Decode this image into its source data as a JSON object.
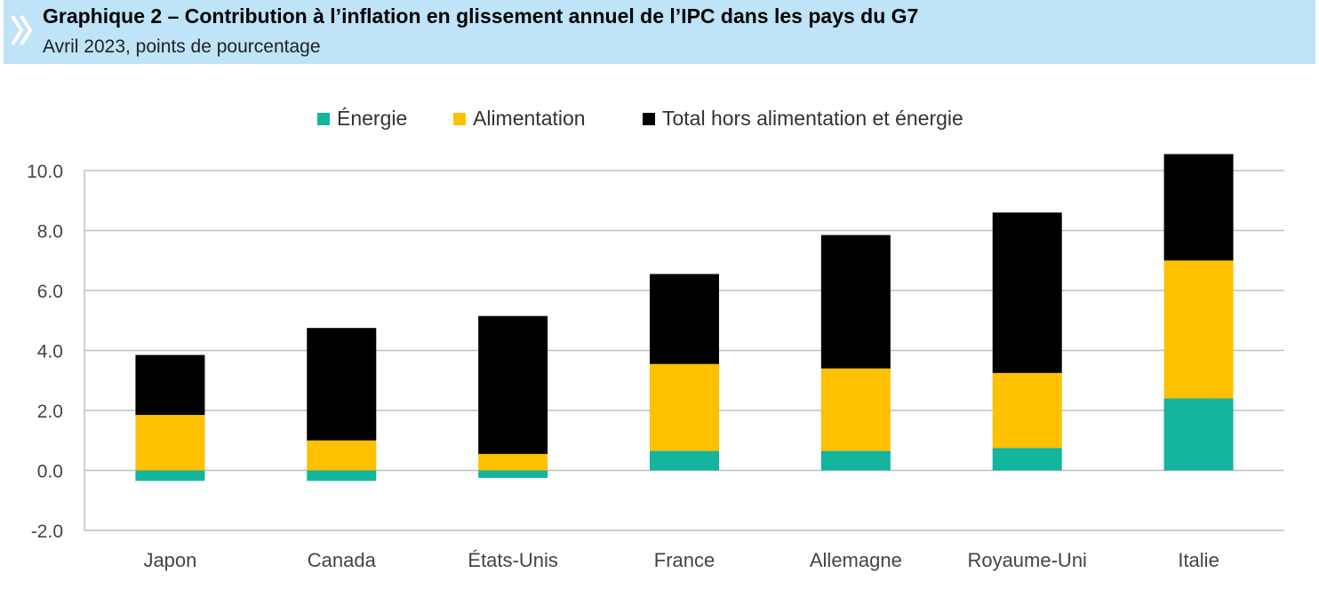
{
  "header": {
    "title": "Graphique 2 – Contribution à l’inflation en glissement annuel de l’IPC dans les pays du G7",
    "subtitle": "Avril 2023, points de pourcentage",
    "chevron_icon": "double-chevron-right-icon",
    "background_color": "#bfe3f7"
  },
  "chart_data": {
    "type": "bar",
    "stacked": true,
    "categories": [
      "Japon",
      "Canada",
      "États-Unis",
      "France",
      "Allemagne",
      "Royaume-Uni",
      "Italie"
    ],
    "series": [
      {
        "name": "Énergie",
        "color": "#13b59c",
        "values": [
          -0.35,
          -0.35,
          -0.25,
          0.65,
          0.65,
          0.75,
          2.4
        ]
      },
      {
        "name": "Alimentation",
        "color": "#ffc000",
        "values": [
          1.85,
          1.0,
          0.55,
          2.9,
          2.75,
          2.5,
          4.6
        ]
      },
      {
        "name": "Total hors alimentation et énergie",
        "color": "#000000",
        "values": [
          2.0,
          3.75,
          4.6,
          3.0,
          4.45,
          5.35,
          3.55
        ]
      }
    ],
    "ylim": [
      -2.0,
      10.0
    ],
    "yticks": [
      "-2.0",
      "0.0",
      "2.0",
      "4.0",
      "6.0",
      "8.0",
      "10.0"
    ],
    "grid": true,
    "legend_position": "top",
    "xlabel": "",
    "ylabel": ""
  }
}
